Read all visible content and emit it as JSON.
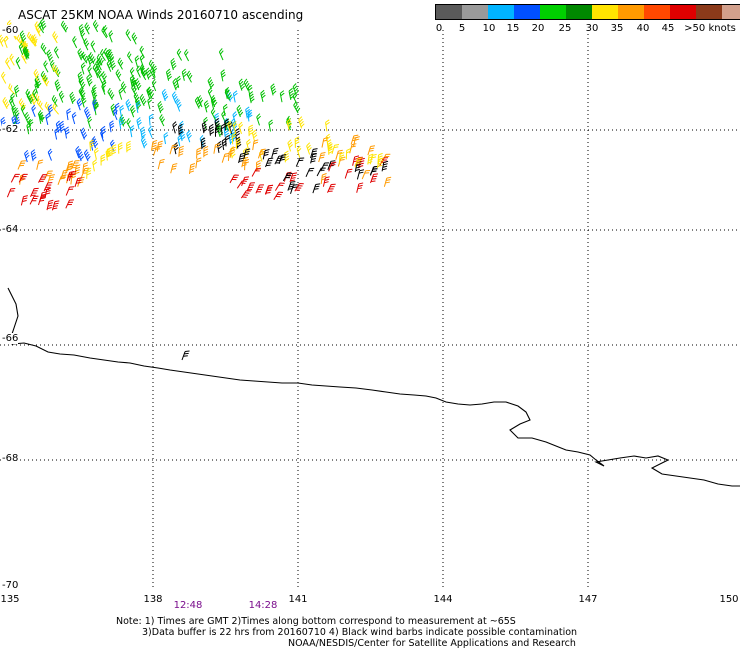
{
  "title": "ASCAT 25KM NOAA Winds 20160710 ascending",
  "legend": {
    "colors": [
      "#5a5a5a",
      "#9a9a9a",
      "#00b4ff",
      "#0050ff",
      "#00d000",
      "#008800",
      "#ffe400",
      "#ff9a00",
      "#ff4800",
      "#e00000",
      "#8b3a1a",
      "#d2a08c",
      "#ff00ff",
      "#b000c0",
      "#6a00c8"
    ],
    "ticks": [
      "0",
      "5",
      "10",
      "15",
      "20",
      "25",
      "30",
      "35",
      "40",
      "45",
      ">50 knots"
    ]
  },
  "axes": {
    "lat_labels": [
      "-60",
      "-62",
      "-64",
      "-66",
      "-68",
      "-70"
    ],
    "lon_labels": [
      "135",
      "138",
      "141",
      "144",
      "147",
      "150"
    ]
  },
  "time_labels": [
    "12:48",
    "14:28"
  ],
  "notes": [
    "Note: 1) Times are GMT 2)Times along bottom correspond to measurement at ~65S",
    "3)Data buffer is 22 hrs from 20160710 4) Black wind barbs indicate possible contamination",
    "NOAA/NESDIS/Center for Satellite Applications and Research"
  ],
  "barb_colors": {
    "yellow": "#ffe400",
    "green": "#00c000",
    "blue": "#0050ff",
    "cyan": "#00b4ff",
    "orange": "#ff9a00",
    "red": "#e00000",
    "black": "#000000"
  }
}
